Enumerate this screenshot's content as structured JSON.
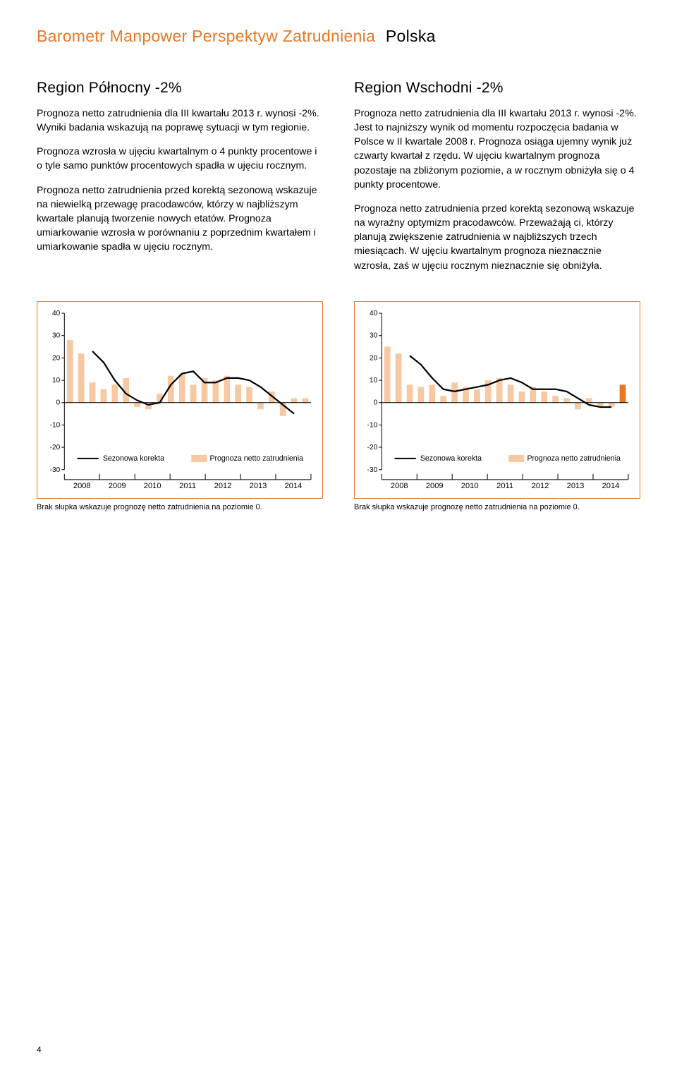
{
  "header": {
    "brand": "Barometr Manpower Perspektyw Zatrudnienia",
    "country": "Polska"
  },
  "left": {
    "title": "Region Północny  -2%",
    "paragraphs": [
      "Prognoza netto zatrudnienia dla III kwartału 2013 r. wynosi -2%. Wyniki badania wskazują na poprawę sytuacji w tym regionie.",
      "Prognoza wzrosła w ujęciu kwartalnym o 4 punkty procentowe i o tyle samo punktów procentowych spadła w ujęciu rocznym.",
      "Prognoza netto zatrudnienia przed korektą sezonową wskazuje na niewielką przewagę pracodawców, którzy w najbliższym kwartale planują tworzenie nowych etatów. Prognoza umiarkowanie wzrosła w porównaniu z poprzednim kwartałem i umiarkowanie spadła w ujęciu rocznym."
    ]
  },
  "right": {
    "title": "Region Wschodni  -2%",
    "paragraphs": [
      "Prognoza netto zatrudnienia dla III kwartału 2013 r. wynosi -2%. Jest to najniższy wynik od momentu rozpoczęcia badania w Polsce w II kwartale 2008 r. Prognoza osiąga ujemny wynik już czwarty kwartał z rzędu. W ujęciu kwartalnym prognoza pozostaje na zbliżonym poziomie, a w rocznym obniżyła się o 4 punkty procentowe.",
      "Prognoza netto zatrudnienia przed korektą sezonową wskazuje na wyraźny optymizm pracodawców. Przeważają ci, którzy planują zwiększenie zatrudnienia w najbliższych trzech miesiącach. W ujęciu kwartalnym prognoza nieznacznie wzrosła, zaś w ujęciu rocznym nieznacznie się obniżyła."
    ]
  },
  "chart": {
    "ylim_min": -30,
    "ylim_max": 40,
    "ytick_step": 10,
    "y_ticks": [
      -30,
      -20,
      -10,
      0,
      10,
      20,
      30,
      40
    ],
    "x_years": [
      "2008",
      "2009",
      "2010",
      "2011",
      "2012",
      "2013",
      "2014"
    ],
    "bar_color": "#f7c9a3",
    "bar_color_highlight": "#e87722",
    "line_color": "#000000",
    "axis_color": "#000000",
    "border_color": "#e87722",
    "grid_color": "#e0e0e0",
    "background_color": "#ffffff",
    "bar_width": 0.55,
    "line_width": 2.2,
    "legend": {
      "seasonal_label": "Sezonowa korekta",
      "forecast_label": "Prognoza netto zatrudnienia"
    },
    "footnote": "Brak słupka wskazuje prognozę netto zatrudnienia na poziomie 0."
  },
  "chart_left": {
    "bars": [
      28,
      22,
      9,
      6,
      8,
      11,
      -2,
      -3,
      4,
      12,
      13,
      8,
      11,
      10,
      12,
      8,
      7,
      -3,
      5,
      -6,
      2,
      2
    ],
    "line": [
      null,
      null,
      23,
      18,
      10,
      4,
      1,
      -1,
      0,
      8,
      13,
      14,
      9,
      9,
      11,
      11,
      10,
      7,
      3,
      -1,
      -5,
      null
    ],
    "highlight_index": -1
  },
  "chart_right": {
    "bars": [
      25,
      22,
      8,
      7,
      8,
      3,
      9,
      7,
      6,
      10,
      11,
      8,
      5,
      7,
      5,
      3,
      2,
      -3,
      2,
      -2,
      -2,
      8
    ],
    "line": [
      null,
      null,
      21,
      17,
      11,
      6,
      5,
      6,
      7,
      8,
      10,
      11,
      9,
      6,
      6,
      6,
      5,
      2,
      -1,
      -2,
      -2,
      null
    ],
    "highlight_index": 21
  },
  "page_number": "4"
}
